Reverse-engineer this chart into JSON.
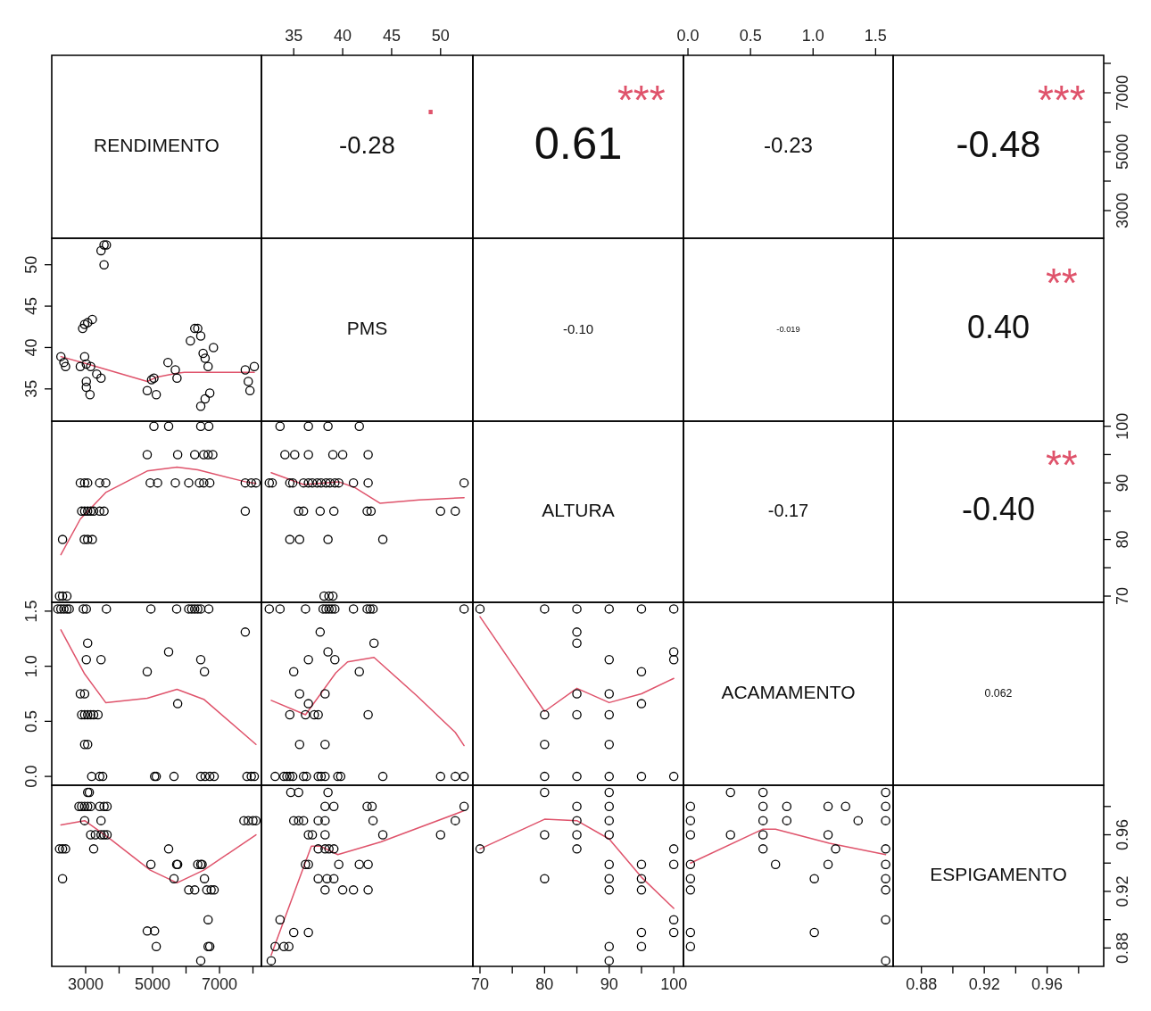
{
  "chart_data": [
    {
      "type": "other",
      "title": "RENDIMENTO"
    },
    {
      "type": "scatter",
      "annotations": [
        "-0.28",
        "."
      ],
      "xlim": [
        31.7,
        53.3
      ],
      "xticks": [
        35,
        40,
        45,
        50
      ],
      "tick_labels": "x",
      "ylim": [
        2060,
        8273
      ]
    },
    {
      "type": "other",
      "annotations": [
        "0.61",
        "***"
      ]
    },
    {
      "type": "scatter",
      "annotations": [
        "-0.23"
      ],
      "xlim": [
        -0.036,
        1.64
      ],
      "xticks": [
        {
          "value": 0,
          "label": "0.0"
        },
        0.5,
        {
          "value": 1,
          "label": "1.0"
        },
        1.5
      ],
      "tick_labels": "x",
      "ylim": [
        2060,
        8273
      ]
    },
    {
      "type": "scatter",
      "annotations": [
        "-0.48",
        "***"
      ],
      "xlim": [
        0.862,
        0.996
      ],
      "tick_labels": "y",
      "ylim": [
        2060,
        8273
      ],
      "yticks": [
        3000,
        {
          "value": 4000,
          "label": null
        },
        5000,
        {
          "value": 6000,
          "label": null
        },
        7000,
        {
          "value": 8000,
          "label": null
        }
      ]
    },
    {
      "type": "scatter",
      "xlim": [
        1987,
        8253
      ],
      "ylim": [
        31.1,
        53.2
      ],
      "yticks": [
        35,
        40,
        45,
        50
      ],
      "tick_labels": "y",
      "marker": "circle",
      "series": [
        {
          "color": "#000000",
          "x": [
            3550,
            3620,
            3460,
            3550,
            2910,
            2970,
            3060,
            3200,
            2260,
            2350,
            2400,
            2840,
            2970,
            3020,
            3150,
            3330,
            3460,
            3020,
            3020,
            3130,
            4840,
            4970,
            5040,
            5110,
            5460,
            5680,
            5730,
            6130,
            6260,
            6350,
            6440,
            6510,
            6570,
            6660,
            6820,
            6440,
            6570,
            6710,
            7770,
            7860,
            7910,
            8040
          ],
          "values": [
            52.4,
            52.4,
            51.7,
            50.0,
            42.3,
            42.8,
            43.0,
            43.4,
            38.9,
            38.2,
            37.7,
            37.7,
            38.9,
            38.0,
            37.7,
            36.8,
            36.3,
            35.9,
            35.2,
            34.3,
            34.8,
            36.1,
            36.3,
            34.3,
            38.2,
            37.3,
            36.3,
            40.8,
            42.3,
            42.3,
            41.4,
            39.3,
            38.7,
            37.7,
            40.0,
            32.9,
            33.8,
            34.5,
            37.3,
            35.9,
            34.8,
            37.7
          ]
        },
        {
          "type": "line",
          "marker": "none",
          "color": "#df536b",
          "x": [
            2260,
            3060,
            4840,
            5110,
            5730,
            5950,
            8040
          ],
          "values": [
            38.9,
            38.0,
            35.9,
            36.4,
            36.9,
            37.0,
            37.0
          ]
        }
      ]
    },
    {
      "type": "other",
      "title": "PMS"
    },
    {
      "type": "other",
      "annotations": [
        "-0.10"
      ]
    },
    {
      "type": "other",
      "annotations": [
        "-0.019"
      ]
    },
    {
      "type": "other",
      "annotations": [
        "0.40",
        "**"
      ]
    },
    {
      "type": "scatter",
      "xlim": [
        1987,
        8253
      ],
      "ylim": [
        68.9,
        100.9
      ],
      "tick_labels": false,
      "marker": "circle",
      "series": [
        {
          "color": "#000000",
          "x": [
            5040,
            5480,
            6440,
            6680,
            4840,
            5750,
            6260,
            6530,
            6660,
            6800,
            2840,
            2970,
            3060,
            3420,
            3600,
            4930,
            5150,
            5680,
            6080,
            6400,
            6530,
            6710,
            7770,
            7950,
            8090,
            2880,
            2970,
            3060,
            3150,
            3240,
            3420,
            3550,
            7770,
            2310,
            2960,
            3060,
            3200,
            2220,
            2310,
            2440
          ],
          "values": [
            100,
            100,
            100,
            100,
            95,
            95,
            95,
            95,
            95,
            95,
            90,
            90,
            90,
            90,
            90,
            90,
            90,
            90,
            90,
            90,
            90,
            90,
            90,
            90,
            90,
            85,
            85,
            85,
            85,
            85,
            85,
            85,
            85,
            80,
            80,
            80,
            80,
            70,
            70,
            70
          ]
        },
        {
          "type": "line",
          "marker": "none",
          "color": "#df536b",
          "x": [
            2260,
            2840,
            3600,
            4840,
            5730,
            6350,
            7770,
            8090
          ],
          "values": [
            77.3,
            83.6,
            88.3,
            92.1,
            92.8,
            92.3,
            90.2,
            89.9
          ]
        }
      ]
    },
    {
      "type": "scatter",
      "xlim": [
        31.7,
        53.3
      ],
      "ylim": [
        68.9,
        100.9
      ],
      "tick_labels": false,
      "marker": "circle",
      "series": [
        {
          "color": "#000000",
          "x": [
            33.6,
            36.5,
            38.5,
            41.7,
            34.1,
            35.1,
            36.5,
            39.0,
            40.0,
            42.6,
            32.5,
            32.8,
            34.6,
            34.9,
            36.0,
            36.5,
            36.9,
            37.4,
            37.8,
            38.3,
            38.7,
            39.2,
            39.6,
            41.1,
            42.6,
            52.4,
            35.5,
            36.0,
            37.7,
            39.1,
            42.5,
            42.9,
            50.0,
            51.5,
            34.6,
            35.6,
            38.5,
            44.1,
            38.1,
            38.6,
            39.0
          ],
          "values": [
            100,
            100,
            100,
            100,
            95,
            95,
            95,
            95,
            95,
            95,
            90,
            90,
            90,
            90,
            90,
            90,
            90,
            90,
            90,
            90,
            90,
            90,
            90,
            90,
            90,
            90,
            85,
            85,
            85,
            85,
            85,
            85,
            85,
            85,
            80,
            80,
            80,
            80,
            70,
            70,
            70
          ]
        },
        {
          "type": "line",
          "marker": "none",
          "color": "#df536b",
          "x": [
            32.7,
            36.0,
            39.6,
            41.2,
            43.8,
            47.8,
            52.4
          ],
          "values": [
            91.8,
            89.7,
            90.2,
            89.2,
            86.4,
            87.0,
            87.4
          ]
        }
      ]
    },
    {
      "type": "other",
      "title": "ALTURA"
    },
    {
      "type": "other",
      "annotations": [
        "-0.17"
      ]
    },
    {
      "type": "scatter",
      "annotations": [
        "-0.40",
        "**"
      ],
      "xlim": [
        0.862,
        0.996
      ],
      "tick_labels": "y",
      "ylim": [
        68.9,
        100.9
      ],
      "yticks": [
        70,
        {
          "value": 75,
          "label": null
        },
        80,
        {
          "value": 85,
          "label": null
        },
        90,
        {
          "value": 95,
          "label": null
        },
        100
      ]
    },
    {
      "type": "scatter",
      "xlim": [
        1987,
        8253
      ],
      "ylim": [
        -0.08,
        1.58
      ],
      "yticks": [
        {
          "value": 0,
          "label": "0.0"
        },
        0.5,
        {
          "value": 1,
          "label": "1.0"
        },
        1.5
      ],
      "tick_labels": "y",
      "marker": "circle",
      "series": [
        {
          "color": "#000000",
          "x": [
            2170,
            2260,
            2350,
            2440,
            2510,
            2930,
            3020,
            3620,
            4950,
            5720,
            6080,
            6170,
            6260,
            6350,
            6440,
            6680,
            7770,
            3060,
            5480,
            3020,
            3460,
            6440,
            4840,
            6550,
            2840,
            2970,
            5750,
            2880,
            2970,
            3060,
            3150,
            3240,
            3370,
            2970,
            3060,
            3180,
            3420,
            3510,
            5060,
            5110,
            5640,
            6440,
            6570,
            6710,
            6840,
            7820,
            7950,
            8040
          ],
          "values": [
            1.52,
            1.52,
            1.52,
            1.52,
            1.52,
            1.52,
            1.52,
            1.52,
            1.52,
            1.52,
            1.52,
            1.52,
            1.52,
            1.52,
            1.52,
            1.52,
            1.31,
            1.21,
            1.13,
            1.06,
            1.06,
            1.06,
            0.95,
            0.95,
            0.75,
            0.75,
            0.66,
            0.56,
            0.56,
            0.56,
            0.56,
            0.56,
            0.56,
            0.29,
            0.29,
            0,
            0,
            0,
            0,
            0,
            0,
            0,
            0,
            0,
            0,
            0,
            0,
            0
          ]
        },
        {
          "type": "line",
          "marker": "none",
          "color": "#df536b",
          "x": [
            2260,
            2970,
            3600,
            4840,
            5730,
            6530,
            8090
          ],
          "values": [
            1.33,
            0.93,
            0.67,
            0.71,
            0.79,
            0.7,
            0.29
          ]
        }
      ]
    },
    {
      "type": "scatter",
      "xlim": [
        31.7,
        53.3
      ],
      "ylim": [
        -0.08,
        1.58
      ],
      "tick_labels": false,
      "marker": "circle",
      "series": [
        {
          "color": "#000000",
          "x": [
            32.5,
            33.6,
            36.2,
            38.0,
            38.3,
            38.6,
            38.9,
            39.2,
            41.1,
            42.5,
            42.8,
            43.1,
            52.4,
            37.7,
            43.2,
            38.5,
            36.5,
            39.2,
            35.0,
            41.7,
            35.6,
            38.2,
            36.5,
            34.6,
            36.2,
            37.1,
            37.5,
            42.6,
            35.6,
            38.2,
            33.1,
            34.0,
            34.3,
            34.6,
            34.9,
            36.0,
            36.3,
            37.5,
            37.8,
            38.2,
            39.5,
            39.8,
            44.1,
            50.0,
            51.5,
            52.4
          ],
          "values": [
            1.52,
            1.52,
            1.52,
            1.52,
            1.52,
            1.52,
            1.52,
            1.52,
            1.52,
            1.52,
            1.52,
            1.52,
            1.52,
            1.31,
            1.21,
            1.13,
            1.06,
            1.06,
            0.95,
            0.95,
            0.75,
            0.75,
            0.66,
            0.56,
            0.56,
            0.56,
            0.56,
            0.56,
            0.29,
            0.29,
            0,
            0,
            0,
            0,
            0,
            0,
            0,
            0,
            0,
            0,
            0,
            0,
            0,
            0,
            0,
            0
          ]
        },
        {
          "type": "line",
          "marker": "none",
          "color": "#df536b",
          "x": [
            32.7,
            36.2,
            39.3,
            40.5,
            43.2,
            47.6,
            51.5,
            52.4
          ],
          "values": [
            0.69,
            0.56,
            0.94,
            1.04,
            1.08,
            0.73,
            0.4,
            0.28
          ]
        }
      ]
    },
    {
      "type": "scatter",
      "xlim": [
        68.9,
        101.5
      ],
      "ylim": [
        -0.08,
        1.58
      ],
      "tick_labels": false,
      "marker": "circle",
      "series": [
        {
          "color": "#000000",
          "x": [
            70,
            80,
            80,
            80,
            80,
            85,
            85,
            85,
            85,
            85,
            85,
            90,
            90,
            90,
            90,
            90,
            90,
            95,
            95,
            95,
            95,
            100,
            100,
            100,
            100
          ],
          "values": [
            1.52,
            1.52,
            0.56,
            0.29,
            0,
            1.52,
            1.31,
            1.21,
            0.75,
            0.56,
            0,
            1.52,
            1.06,
            0.75,
            0.56,
            0.29,
            0,
            1.52,
            0.95,
            0.66,
            0,
            1.52,
            1.13,
            1.06,
            0
          ]
        },
        {
          "type": "line",
          "marker": "none",
          "color": "#df536b",
          "x": [
            70,
            80,
            85,
            90,
            95,
            100
          ],
          "values": [
            1.45,
            0.59,
            0.8,
            0.67,
            0.75,
            0.89
          ]
        }
      ]
    },
    {
      "type": "other",
      "title": "ACAMAMENTO"
    },
    {
      "type": "other",
      "annotations": [
        "0.062"
      ]
    },
    {
      "type": "scatter",
      "xlim": [
        1987,
        8253
      ],
      "ylim": [
        0.867,
        0.995
      ],
      "xticks": [
        3000,
        {
          "value": 4000,
          "label": null
        },
        5000,
        {
          "value": 6000,
          "label": null
        },
        7000,
        {
          "value": 8000,
          "label": null
        }
      ],
      "tick_labels": "x",
      "marker": "circle",
      "series": [
        {
          "color": "#000000",
          "x": [
            3060,
            3110,
            2800,
            2880,
            2970,
            3060,
            3150,
            3420,
            3550,
            3640,
            2970,
            3460,
            7730,
            7860,
            8000,
            8090,
            3150,
            3290,
            3460,
            3550,
            3640,
            2220,
            2310,
            2400,
            3240,
            5480,
            4950,
            5720,
            5750,
            6350,
            6440,
            6480,
            2310,
            5640,
            6550,
            6080,
            6260,
            6620,
            6750,
            6840,
            6660,
            4840,
            5060,
            5110,
            6660,
            6710,
            6440
          ],
          "values": [
            0.99,
            0.99,
            0.98,
            0.98,
            0.98,
            0.98,
            0.98,
            0.98,
            0.98,
            0.98,
            0.97,
            0.97,
            0.97,
            0.97,
            0.97,
            0.97,
            0.96,
            0.96,
            0.96,
            0.96,
            0.96,
            0.95,
            0.95,
            0.95,
            0.95,
            0.95,
            0.939,
            0.939,
            0.939,
            0.939,
            0.939,
            0.939,
            0.929,
            0.929,
            0.929,
            0.921,
            0.921,
            0.921,
            0.921,
            0.921,
            0.9,
            0.892,
            0.892,
            0.881,
            0.881,
            0.881,
            0.871
          ]
        },
        {
          "type": "line",
          "marker": "none",
          "color": "#df536b",
          "x": [
            2260,
            2970,
            3680,
            4930,
            5730,
            6530,
            8090
          ],
          "values": [
            0.967,
            0.97,
            0.958,
            0.935,
            0.926,
            0.935,
            0.96
          ]
        }
      ]
    },
    {
      "type": "scatter",
      "xlim": [
        31.7,
        53.3
      ],
      "ylim": [
        0.867,
        0.995
      ],
      "tick_labels": false,
      "marker": "circle",
      "series": [
        {
          "color": "#000000",
          "x": [
            34.7,
            35.5,
            38.5,
            38.2,
            39.1,
            42.5,
            43.0,
            52.4,
            35.0,
            35.5,
            36.0,
            37.5,
            38.2,
            43.1,
            51.5,
            36.5,
            36.9,
            38.2,
            44.1,
            50.0,
            37.5,
            38.2,
            38.6,
            39.1,
            36.2,
            36.5,
            39.6,
            41.7,
            42.6,
            37.5,
            38.4,
            39.1,
            38.2,
            40.0,
            41.1,
            42.6,
            33.6,
            35.0,
            36.5,
            33.1,
            34.0,
            34.5,
            32.7
          ],
          "values": [
            0.99,
            0.99,
            0.99,
            0.98,
            0.98,
            0.98,
            0.98,
            0.98,
            0.97,
            0.97,
            0.97,
            0.97,
            0.97,
            0.97,
            0.97,
            0.96,
            0.96,
            0.96,
            0.96,
            0.96,
            0.95,
            0.95,
            0.95,
            0.95,
            0.939,
            0.939,
            0.939,
            0.939,
            0.939,
            0.929,
            0.929,
            0.929,
            0.921,
            0.921,
            0.921,
            0.921,
            0.9,
            0.891,
            0.891,
            0.881,
            0.881,
            0.881,
            0.871
          ]
        },
        {
          "type": "line",
          "marker": "none",
          "color": "#df536b",
          "x": [
            32.7,
            36.0,
            36.8,
            37.7,
            39.5,
            43.9,
            52.4
          ],
          "values": [
            0.875,
            0.937,
            0.952,
            0.952,
            0.946,
            0.955,
            0.977
          ]
        }
      ]
    },
    {
      "type": "scatter",
      "xlim": [
        68.9,
        101.5
      ],
      "ylim": [
        0.867,
        0.995
      ],
      "xticks": [
        70,
        {
          "value": 75,
          "label": null
        },
        80,
        {
          "value": 85,
          "label": null
        },
        90,
        {
          "value": 95,
          "label": null
        },
        100
      ],
      "tick_labels": "x",
      "marker": "circle",
      "series": [
        {
          "color": "#000000",
          "x": [
            70,
            80,
            80,
            80,
            85,
            85,
            85,
            85,
            90,
            90,
            90,
            90,
            90,
            90,
            90,
            90,
            90,
            95,
            95,
            95,
            95,
            95,
            100,
            100,
            100,
            100
          ],
          "values": [
            0.95,
            0.99,
            0.96,
            0.929,
            0.98,
            0.97,
            0.96,
            0.95,
            0.99,
            0.98,
            0.97,
            0.96,
            0.939,
            0.929,
            0.921,
            0.881,
            0.871,
            0.939,
            0.929,
            0.921,
            0.891,
            0.881,
            0.95,
            0.939,
            0.9,
            0.891
          ]
        },
        {
          "type": "line",
          "marker": "none",
          "color": "#df536b",
          "x": [
            70,
            80,
            85,
            90,
            95,
            100
          ],
          "values": [
            0.95,
            0.971,
            0.97,
            0.957,
            0.93,
            0.908
          ]
        }
      ]
    },
    {
      "type": "scatter",
      "xlim": [
        -0.036,
        1.64
      ],
      "ylim": [
        0.867,
        0.995
      ],
      "tick_labels": false,
      "marker": "circle",
      "series": [
        {
          "color": "#000000",
          "x": [
            0.02,
            0.02,
            0.02,
            0.02,
            0.02,
            0.02,
            0.02,
            0.02,
            0.34,
            0.34,
            0.6,
            0.6,
            0.6,
            0.6,
            0.6,
            0.7,
            0.79,
            0.79,
            1.01,
            1.01,
            1.12,
            1.12,
            1.12,
            1.18,
            1.26,
            1.36,
            1.58,
            1.58,
            1.58,
            1.58,
            1.58,
            1.58,
            1.58,
            1.58,
            1.58
          ],
          "values": [
            0.98,
            0.97,
            0.96,
            0.939,
            0.929,
            0.921,
            0.891,
            0.881,
            0.99,
            0.96,
            0.99,
            0.98,
            0.97,
            0.96,
            0.95,
            0.939,
            0.98,
            0.97,
            0.929,
            0.891,
            0.98,
            0.96,
            0.939,
            0.95,
            0.98,
            0.97,
            0.99,
            0.98,
            0.97,
            0.95,
            0.939,
            0.929,
            0.921,
            0.9,
            0.871
          ]
        },
        {
          "type": "line",
          "marker": "none",
          "color": "#df536b",
          "x": [
            0.02,
            0.6,
            0.7,
            1.13,
            1.58
          ],
          "values": [
            0.94,
            0.964,
            0.964,
            0.954,
            0.946
          ]
        }
      ]
    },
    {
      "type": "scatter",
      "title": "ESPIGAMENTO",
      "xlim": [
        0.862,
        0.996
      ],
      "xticks": [
        0.88,
        {
          "value": 0.9,
          "label": null
        },
        0.92,
        {
          "value": 0.94,
          "label": null
        },
        0.96,
        {
          "value": 0.98,
          "label": null
        }
      ],
      "ylim": [
        0.867,
        0.995
      ],
      "yticks": [
        0.88,
        {
          "value": 0.9,
          "label": null
        },
        0.92,
        {
          "value": 0.94,
          "label": null
        },
        0.96,
        {
          "value": 0.98,
          "label": null
        }
      ]
    }
  ]
}
